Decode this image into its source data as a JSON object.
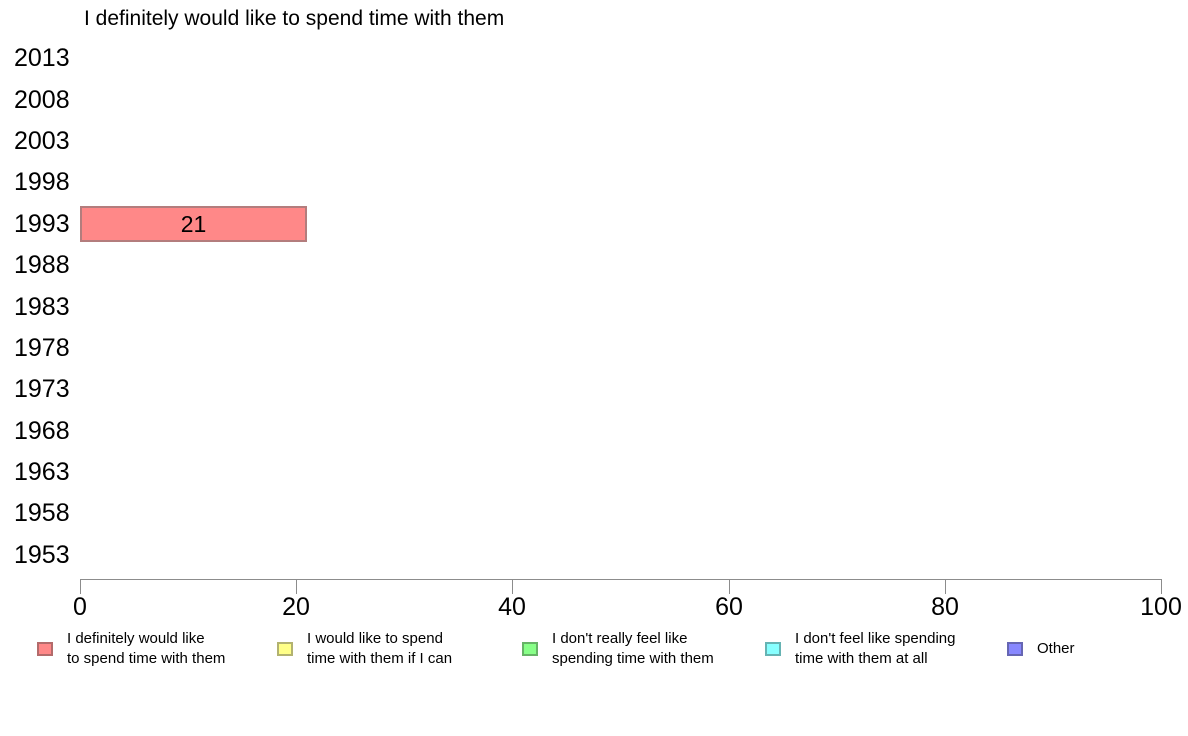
{
  "title": "I definitely would like to spend time with them",
  "background_color": "#ffffff",
  "axis_color": "#8c8c8c",
  "chart_data": {
    "type": "bar",
    "orientation": "horizontal",
    "title": "I definitely would like to spend time with them",
    "categories": [
      "2013",
      "2008",
      "2003",
      "1998",
      "1993",
      "1988",
      "1983",
      "1978",
      "1973",
      "1968",
      "1963",
      "1958",
      "1953"
    ],
    "series": [
      {
        "name": "I definitely would like to spend time with them",
        "color": "#ff8888",
        "border_color": "#b37d7d",
        "values": [
          null,
          null,
          null,
          null,
          21,
          null,
          null,
          null,
          null,
          null,
          null,
          null,
          null
        ]
      }
    ],
    "bar_value_labels": true,
    "xlim": [
      0,
      100
    ],
    "x_ticks": [
      0,
      20,
      40,
      60,
      80,
      100
    ],
    "grid": false,
    "legend_position": "bottom",
    "legend": [
      {
        "label_lines": [
          "I definitely would like",
          "to spend time with them"
        ],
        "color": "#ff8888",
        "border_color": "#b36b6b"
      },
      {
        "label_lines": [
          "I would like to spend",
          "time with them if I can"
        ],
        "color": "#ffff88",
        "border_color": "#b2b270"
      },
      {
        "label_lines": [
          "I don't really feel like",
          "spending time with them"
        ],
        "color": "#88ff88",
        "border_color": "#66b366"
      },
      {
        "label_lines": [
          "I don't feel like spending",
          "time with them at all"
        ],
        "color": "#88ffff",
        "border_color": "#66b3b3"
      },
      {
        "label_lines": [
          "Other"
        ],
        "color": "#8888ff",
        "border_color": "#6666b3"
      }
    ]
  }
}
